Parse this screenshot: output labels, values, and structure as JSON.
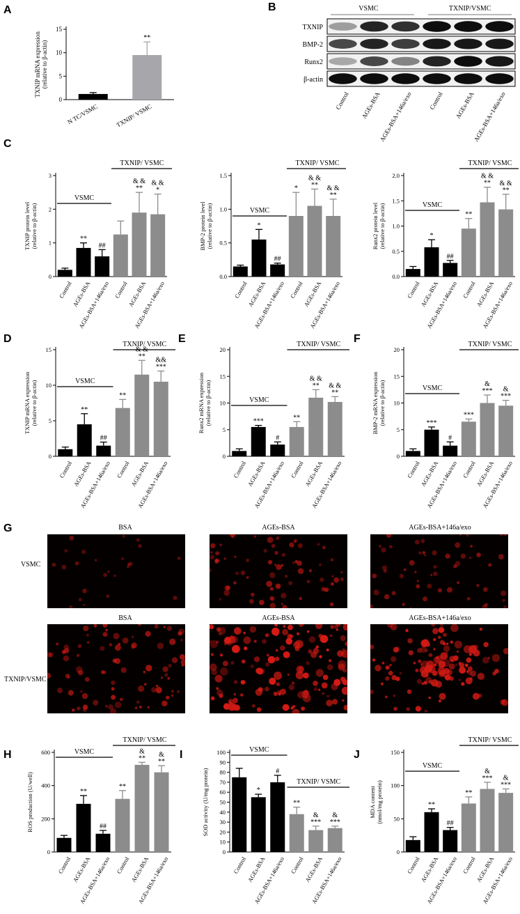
{
  "panels": [
    "A",
    "B",
    "C",
    "D",
    "E",
    "F",
    "G",
    "H",
    "I",
    "J"
  ],
  "colors": {
    "black_bar": "#000000",
    "gray_bar": "#8c8c8c",
    "light_gray_bar": "#a6a6ab",
    "red_cells": "#d41a14"
  },
  "blot": {
    "groups": [
      "VSMC",
      "TXNIP/VSMC"
    ],
    "rows": [
      "TXNIP",
      "BMP-2",
      "Runx2",
      "β-actin"
    ],
    "lanes": [
      "Control",
      "AGEs-BSA",
      "AGEs-BSA+146a/exo",
      "Control",
      "AGEs-BSA",
      "AGEs-BSA+146a/exo"
    ]
  },
  "micrographs": {
    "row_labels": [
      "VSMC",
      "TXNIP/VSMC"
    ],
    "columns": [
      "BSA",
      "AGEs-BSA",
      "AGEs-BSA+146a/exo"
    ],
    "density": [
      [
        0.15,
        0.45,
        0.35
      ],
      [
        0.55,
        0.95,
        0.85
      ]
    ]
  },
  "chart_data": [
    {
      "panel": "A",
      "type": "bar",
      "categories": [
        "N TC/VSMC",
        "TXNIP/ VSMC"
      ],
      "values": [
        1.2,
        9.5
      ],
      "errors": [
        0.3,
        2.8
      ],
      "annotations": [
        "",
        "**"
      ],
      "ylabel": "TXNIP mRNA expression",
      "ylabel2": "(relative to β-actin)",
      "ylim": [
        0,
        15
      ],
      "yticks": [
        0,
        5,
        10,
        15
      ]
    },
    {
      "panel": "C1",
      "type": "bar",
      "categories": [
        "Control",
        "AGEs-BSA",
        "AGEs-BSA+146a/exo",
        "Control",
        "AGEs-BSA",
        "AGEs-BSA+146a/exo"
      ],
      "values": [
        0.2,
        0.85,
        0.6,
        1.25,
        1.9,
        1.85
      ],
      "errors": [
        0.05,
        0.15,
        0.2,
        0.4,
        0.6,
        0.6
      ],
      "annotations": [
        "",
        "**",
        "##",
        "",
        "& &\n**",
        "& &\n*"
      ],
      "ylabel": "TXNIP protein level",
      "ylabel2": "(relative to β-actin)",
      "ylim": [
        0,
        3
      ],
      "yticks": [
        0,
        1,
        2,
        3
      ],
      "group_labels": [
        "VSMC",
        "TXNIP/ VSMC"
      ]
    },
    {
      "panel": "C2",
      "type": "bar",
      "categories": [
        "Control",
        "AGEs-BSA",
        "AGEs-BSA+146a/exo",
        "Control",
        "AGEs-BSA",
        "AGEs-BSA+146a/exo"
      ],
      "values": [
        0.15,
        0.55,
        0.18,
        0.9,
        1.05,
        0.9
      ],
      "errors": [
        0.02,
        0.15,
        0.02,
        0.35,
        0.25,
        0.25
      ],
      "annotations": [
        "",
        "*",
        "##",
        "*",
        "& &\n**",
        "& &\n**"
      ],
      "ylabel": "BMP-2 protein level",
      "ylabel2": "(relative to β-actin)",
      "ylim": [
        0,
        1.5
      ],
      "yticks": [
        0.0,
        0.5,
        1.0,
        1.5
      ],
      "group_labels": [
        "VSMC",
        "TXNIP/ VSMC"
      ]
    },
    {
      "panel": "C3",
      "type": "bar",
      "categories": [
        "Control",
        "AGEs-BSA",
        "AGEs-BSA+146a/exo",
        "Control",
        "AGEs-BSA",
        "AGEs-BSA+146a/exo"
      ],
      "values": [
        0.15,
        0.58,
        0.27,
        0.95,
        1.47,
        1.33
      ],
      "errors": [
        0.05,
        0.15,
        0.05,
        0.2,
        0.3,
        0.3
      ],
      "annotations": [
        "",
        "*",
        "##",
        "**",
        "& &\n**",
        "& &\n**"
      ],
      "ylabel": "Runx2 protein level",
      "ylabel2": "(relative to β-actin)",
      "ylim": [
        0,
        2.0
      ],
      "yticks": [
        0.0,
        0.5,
        1.0,
        1.5,
        2.0
      ],
      "group_labels": [
        "VSMC",
        "TXNIP/ VSMC"
      ]
    },
    {
      "panel": "D",
      "type": "bar",
      "categories": [
        "Control",
        "AGEs-BSA",
        "AGEs-BSA+146a/exo",
        "Control",
        "AGEs-BSA",
        "AGEs-BSA+146a/exo"
      ],
      "values": [
        1.0,
        4.5,
        1.5,
        6.8,
        11.5,
        10.5
      ],
      "errors": [
        0.3,
        1.5,
        0.5,
        1.2,
        2.0,
        1.5
      ],
      "annotations": [
        "",
        "**",
        "##",
        "**",
        "& &\n**",
        "&&\n***"
      ],
      "ylabel": "TXNIP mRNA expression",
      "ylabel2": "(relative to β-actin)",
      "ylim": [
        0,
        15
      ],
      "yticks": [
        0,
        5,
        10,
        15
      ],
      "group_labels": [
        "VSMC",
        "TXNIP/ VSMC"
      ]
    },
    {
      "panel": "E",
      "type": "bar",
      "categories": [
        "Control",
        "AGEs-BSA",
        "AGEs-BSA+146a/exo",
        "Control",
        "AGEs-BSA",
        "AGEs-BSA+146a/exo"
      ],
      "values": [
        1.0,
        5.5,
        2.2,
        5.5,
        11.0,
        10.2
      ],
      "errors": [
        0.4,
        0.3,
        0.5,
        1.0,
        1.5,
        1.0
      ],
      "annotations": [
        "",
        "***",
        "#",
        "**",
        "& &\n**",
        "& &\n**"
      ],
      "ylabel": "Runx2 mRNA expression",
      "ylabel2": "(relative to β-actin)",
      "ylim": [
        0,
        20
      ],
      "yticks": [
        0,
        5,
        10,
        15,
        20
      ],
      "group_labels": [
        "VSMC",
        "TXNIP/ VSMC"
      ]
    },
    {
      "panel": "F",
      "type": "bar",
      "categories": [
        "Control",
        "AGEs-BSA",
        "AGEs-BSA+146a/exo",
        "Control",
        "AGEs-BSA",
        "AGEs-BSA+146a/exo"
      ],
      "values": [
        1.0,
        5.0,
        2.0,
        6.5,
        10.0,
        9.5
      ],
      "errors": [
        0.4,
        0.5,
        0.7,
        0.5,
        1.5,
        1.0
      ],
      "annotations": [
        "",
        "***",
        "#",
        "***",
        "&\n***",
        "&\n***"
      ],
      "ylabel": "BMP-2 mRNA expression",
      "ylabel2": "(relative to β-actin)",
      "ylim": [
        0,
        20
      ],
      "yticks": [
        0,
        5,
        10,
        15,
        20
      ],
      "group_labels": [
        "VSMC",
        "TXNIP/ VSMC"
      ]
    },
    {
      "panel": "H",
      "type": "bar",
      "categories": [
        "Control",
        "AGEs-BSA",
        "AGEs-BSA+146a/exo",
        "Control",
        "AGEs-BSA",
        "AGEs-BSA+146a/exo"
      ],
      "values": [
        85,
        290,
        110,
        320,
        525,
        480
      ],
      "errors": [
        15,
        50,
        20,
        50,
        15,
        40
      ],
      "annotations": [
        "",
        "**",
        "##",
        "**",
        "&\n**",
        "&\n**"
      ],
      "ylabel": "ROS production (U/well)",
      "ylabel2": "",
      "ylim": [
        0,
        600
      ],
      "yticks": [
        0,
        200,
        400,
        600
      ],
      "group_labels": [
        "VSMC",
        "TXNIP/ VSMC"
      ]
    },
    {
      "panel": "I",
      "type": "bar",
      "categories": [
        "Control",
        "AGEs-BSA",
        "AGEs-BSA+146a/exo",
        "Control",
        "AGEs-BSA",
        "AGEs-BSA+146a/exo"
      ],
      "values": [
        75,
        55,
        70,
        38,
        22,
        24
      ],
      "errors": [
        9,
        3,
        7,
        7,
        4,
        2
      ],
      "annotations": [
        "",
        "*",
        "#",
        "**",
        "&\n***",
        "&\n***"
      ],
      "ylabel": "SOD activity (U/mg protein)",
      "ylabel2": "",
      "ylim": [
        0,
        100
      ],
      "yticks": [
        0,
        10,
        20,
        30,
        40,
        50,
        60,
        70,
        80,
        90,
        100
      ],
      "group_labels": [
        "VSMC",
        "TXNIP/ VSMC"
      ]
    },
    {
      "panel": "J",
      "type": "bar",
      "categories": [
        "Control",
        "AGEs-BSA",
        "AGEs-BSA+146a/exo",
        "Control",
        "AGEs-BSA",
        "AGEs-BSA+146a/exo"
      ],
      "values": [
        18,
        60,
        33,
        73,
        95,
        89
      ],
      "errors": [
        5,
        5,
        4,
        10,
        10,
        6
      ],
      "annotations": [
        "",
        "**",
        "##",
        "**",
        "&\n***",
        "&\n***"
      ],
      "ylabel": "MDA content",
      "ylabel2": "(nmol/mg protein)",
      "ylim": [
        0,
        150
      ],
      "yticks": [
        0,
        50,
        100,
        150
      ],
      "group_labels": [
        "VSMC",
        "TXNIP/ VSMC"
      ]
    }
  ]
}
